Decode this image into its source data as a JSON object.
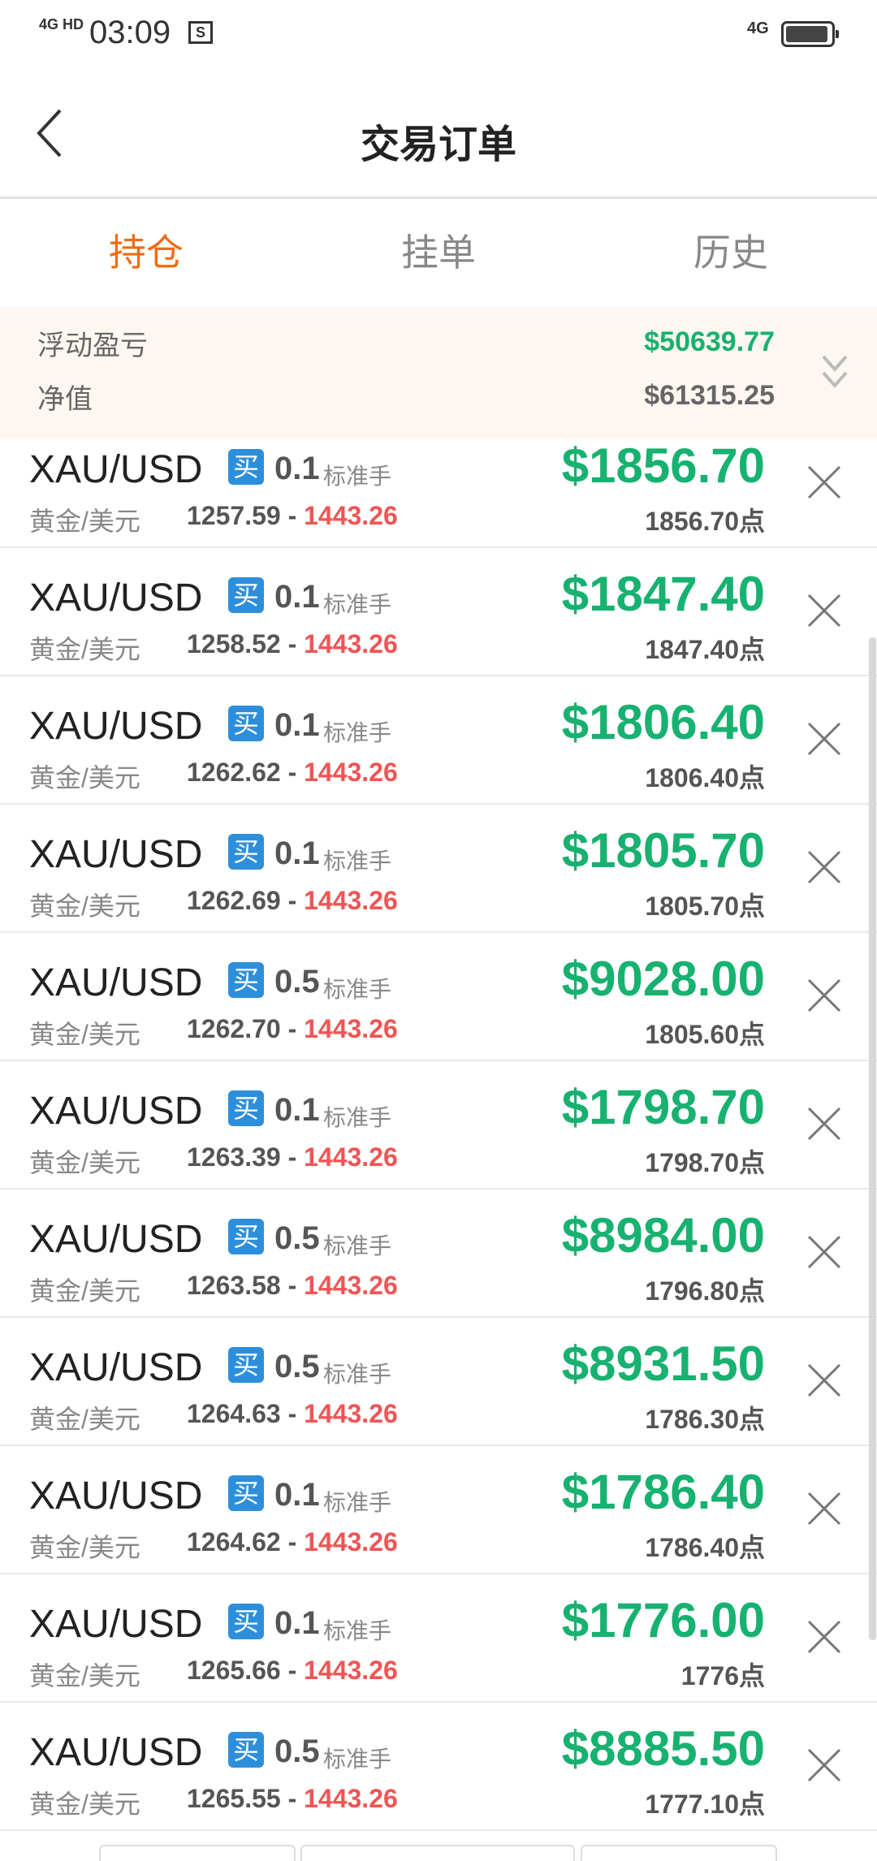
{
  "status_bar": {
    "network": "4G HD",
    "time": "03:09",
    "sim_icon": "S",
    "network_right": "4G",
    "battery_level": 0.95
  },
  "header": {
    "title": "交易订单",
    "back_icon": "chevron-left-icon"
  },
  "tabs": [
    {
      "label": "持仓",
      "active": true
    },
    {
      "label": "挂单",
      "active": false
    },
    {
      "label": "历史",
      "active": false
    }
  ],
  "summary": {
    "floating_pnl_label": "浮动盈亏",
    "floating_pnl_value": "$50639.77",
    "equity_label": "净值",
    "equity_value": "$61315.25",
    "expand_icon": "double-chevron-down-icon"
  },
  "colors": {
    "accent": "#ee6d14",
    "profit": "#17b170",
    "close_price": "#ef5555",
    "buy_badge": "#2d8fdb"
  },
  "positions": [
    {
      "symbol": "XAU/USD",
      "side": "买",
      "lots": "0.1",
      "unit": "标准手",
      "name": "黄金/美元",
      "open": "1257.59",
      "sep": " - ",
      "current": "1443.26",
      "pnl": "$1856.70",
      "points": "1856.70点"
    },
    {
      "symbol": "XAU/USD",
      "side": "买",
      "lots": "0.1",
      "unit": "标准手",
      "name": "黄金/美元",
      "open": "1258.52",
      "sep": " - ",
      "current": "1443.26",
      "pnl": "$1847.40",
      "points": "1847.40点"
    },
    {
      "symbol": "XAU/USD",
      "side": "买",
      "lots": "0.1",
      "unit": "标准手",
      "name": "黄金/美元",
      "open": "1262.62",
      "sep": " - ",
      "current": "1443.26",
      "pnl": "$1806.40",
      "points": "1806.40点"
    },
    {
      "symbol": "XAU/USD",
      "side": "买",
      "lots": "0.1",
      "unit": "标准手",
      "name": "黄金/美元",
      "open": "1262.69",
      "sep": " - ",
      "current": "1443.26",
      "pnl": "$1805.70",
      "points": "1805.70点"
    },
    {
      "symbol": "XAU/USD",
      "side": "买",
      "lots": "0.5",
      "unit": "标准手",
      "name": "黄金/美元",
      "open": "1262.70",
      "sep": " - ",
      "current": "1443.26",
      "pnl": "$9028.00",
      "points": "1805.60点"
    },
    {
      "symbol": "XAU/USD",
      "side": "买",
      "lots": "0.1",
      "unit": "标准手",
      "name": "黄金/美元",
      "open": "1263.39",
      "sep": " - ",
      "current": "1443.26",
      "pnl": "$1798.70",
      "points": "1798.70点"
    },
    {
      "symbol": "XAU/USD",
      "side": "买",
      "lots": "0.5",
      "unit": "标准手",
      "name": "黄金/美元",
      "open": "1263.58",
      "sep": " - ",
      "current": "1443.26",
      "pnl": "$8984.00",
      "points": "1796.80点"
    },
    {
      "symbol": "XAU/USD",
      "side": "买",
      "lots": "0.5",
      "unit": "标准手",
      "name": "黄金/美元",
      "open": "1264.63",
      "sep": " - ",
      "current": "1443.26",
      "pnl": "$8931.50",
      "points": "1786.30点"
    },
    {
      "symbol": "XAU/USD",
      "side": "买",
      "lots": "0.1",
      "unit": "标准手",
      "name": "黄金/美元",
      "open": "1264.62",
      "sep": " - ",
      "current": "1443.26",
      "pnl": "$1786.40",
      "points": "1786.40点"
    },
    {
      "symbol": "XAU/USD",
      "side": "买",
      "lots": "0.1",
      "unit": "标准手",
      "name": "黄金/美元",
      "open": "1265.66",
      "sep": " - ",
      "current": "1443.26",
      "pnl": "$1776.00",
      "points": "1776点"
    },
    {
      "symbol": "XAU/USD",
      "side": "买",
      "lots": "0.5",
      "unit": "标准手",
      "name": "黄金/美元",
      "open": "1265.55",
      "sep": " - ",
      "current": "1443.26",
      "pnl": "$8885.50",
      "points": "1777.10点"
    }
  ]
}
